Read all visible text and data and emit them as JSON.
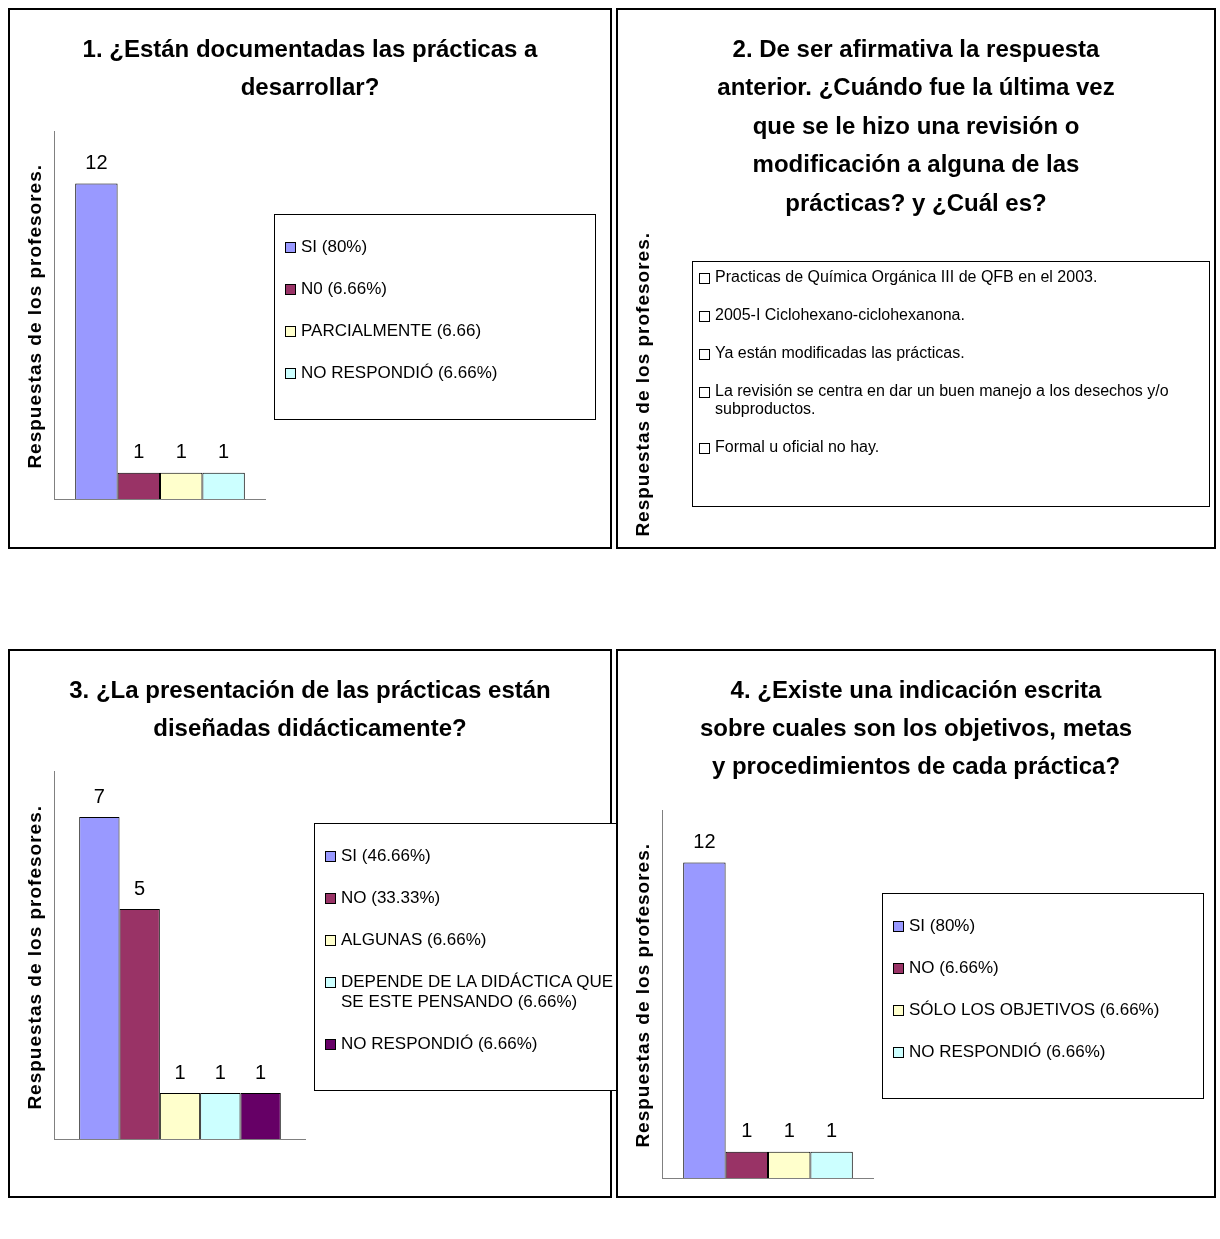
{
  "chart_data": [
    {
      "type": "bar",
      "title": "1. ¿Están documentadas las prácticas a desarrollar?",
      "ylabel": "Respuestas de los profesores.",
      "categories": [
        null
      ],
      "series": [
        {
          "name": "SI (80%)",
          "color": "#9999ff",
          "values": [
            12
          ]
        },
        {
          "name": "N0 (6.66%)",
          "color": "#993366",
          "values": [
            1
          ]
        },
        {
          "name": "PARCIALMENTE (6.66)",
          "color": "#ffffcc",
          "values": [
            1
          ]
        },
        {
          "name": "NO RESPONDIÓ (6.66%)",
          "color": "#ccffff",
          "values": [
            1
          ]
        }
      ],
      "data_labels": true,
      "legend": "right",
      "tick_labels": false
    },
    {
      "type": "other",
      "title": "2. De ser afirmativa la respuesta anterior. ¿Cuándo fue la última vez que se le hizo una revisión o modificación a alguna de las prácticas? y ¿Cuál es?",
      "ylabel": "Respuestas de los profesores.",
      "annotations": [
        "Practicas de Química Orgánica III de QFB en el 2003.",
        "2005-I Ciclohexano-ciclohexanona.",
        "Ya están modificadas las prácticas.",
        "La revisión se centra en dar un buen manejo a los desechos y/o subproductos.",
        "Formal u oficial no hay."
      ]
    },
    {
      "type": "bar",
      "title": "3. ¿La presentación de las prácticas están diseñadas didácticamente?",
      "ylabel": "Respuestas de los profesores.",
      "categories": [
        null
      ],
      "series": [
        {
          "name": "SI (46.66%)",
          "color": "#9999ff",
          "values": [
            7
          ]
        },
        {
          "name": "NO (33.33%)",
          "color": "#993366",
          "values": [
            5
          ]
        },
        {
          "name": "ALGUNAS (6.66%)",
          "color": "#ffffcc",
          "values": [
            1
          ]
        },
        {
          "name": "DEPENDE DE LA DIDÁCTICA QUE SE ESTE PENSANDO (6.66%)",
          "color": "#ccffff",
          "values": [
            1
          ]
        },
        {
          "name": "NO RESPONDIÓ (6.66%)",
          "color": "#660066",
          "values": [
            1
          ]
        }
      ],
      "data_labels": true,
      "legend": "right",
      "tick_labels": false
    },
    {
      "type": "bar",
      "title": "4. ¿Existe una indicación escrita sobre cuales son los objetivos, metas y procedimientos de cada práctica?",
      "ylabel": "Respuestas de los profesores.",
      "categories": [
        null
      ],
      "series": [
        {
          "name": "SI (80%)",
          "color": "#9999ff",
          "values": [
            12
          ]
        },
        {
          "name": "NO (6.66%)",
          "color": "#993366",
          "values": [
            1
          ]
        },
        {
          "name": "SÓLO LOS OBJETIVOS (6.66%)",
          "color": "#ffffcc",
          "values": [
            1
          ]
        },
        {
          "name": "NO RESPONDIÓ (6.66%)",
          "color": "#ccffff",
          "values": [
            1
          ]
        }
      ],
      "data_labels": true,
      "legend": "right",
      "tick_labels": false
    }
  ]
}
